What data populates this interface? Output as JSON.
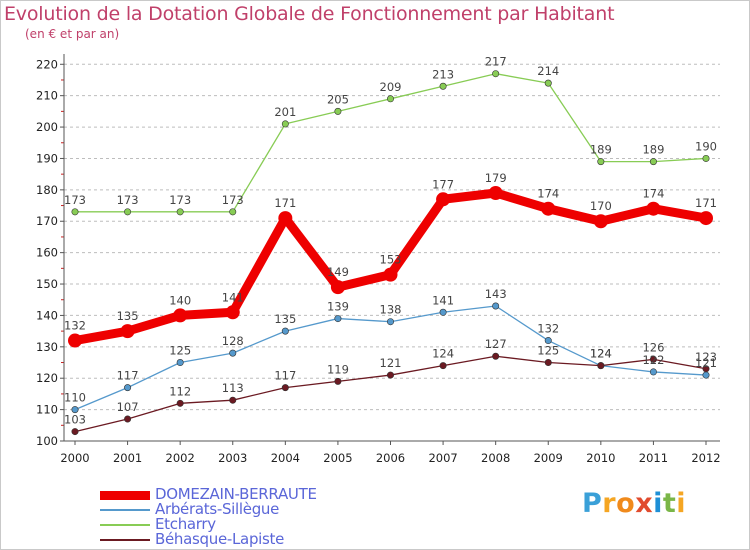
{
  "title": "Evolution de la Dotation Globale de Fonctionnement par Habitant",
  "subtitle": "(en € et par an)",
  "logo": {
    "text": "Proxiti",
    "letters": [
      "P",
      "r",
      "o",
      "x",
      "i",
      "t",
      "i"
    ]
  },
  "colors": {
    "domezain": "#ee0000",
    "arberats": "#5599cc",
    "etcharry": "#88cc55",
    "behasque": "#6b1a22",
    "title": "#c0406a",
    "legend": "#5a66d8"
  },
  "chart_data": {
    "type": "line",
    "title": "Evolution de la Dotation Globale de Fonctionnement par Habitant",
    "subtitle": "(en € et par an)",
    "xlabel": "",
    "ylabel": "",
    "categories": [
      "2000",
      "2001",
      "2002",
      "2003",
      "2004",
      "2005",
      "2006",
      "2007",
      "2008",
      "2009",
      "2010",
      "2011",
      "2012"
    ],
    "yticks": [
      100,
      110,
      120,
      130,
      140,
      150,
      160,
      170,
      180,
      190,
      200,
      210,
      220
    ],
    "ylim": [
      100,
      222
    ],
    "grid": "horizontal-dashed",
    "legend_position": "bottom-left",
    "series": [
      {
        "name": "DOMEZAIN-BERRAUTE",
        "color": "#ee0000",
        "values": [
          132,
          135,
          140,
          141,
          171,
          149,
          153,
          177,
          179,
          174,
          170,
          174,
          171
        ]
      },
      {
        "name": "Arbérats-Sillègue",
        "color": "#5599cc",
        "values": [
          110,
          117,
          125,
          128,
          135,
          139,
          138,
          141,
          143,
          132,
          124,
          122,
          121
        ]
      },
      {
        "name": "Etcharry",
        "color": "#88cc55",
        "values": [
          173,
          173,
          173,
          173,
          201,
          205,
          209,
          213,
          217,
          214,
          189,
          189,
          190
        ]
      },
      {
        "name": "Béhasque-Lapiste",
        "color": "#6b1a22",
        "values": [
          103,
          107,
          112,
          113,
          117,
          119,
          121,
          124,
          127,
          125,
          124,
          126,
          123
        ]
      }
    ]
  }
}
